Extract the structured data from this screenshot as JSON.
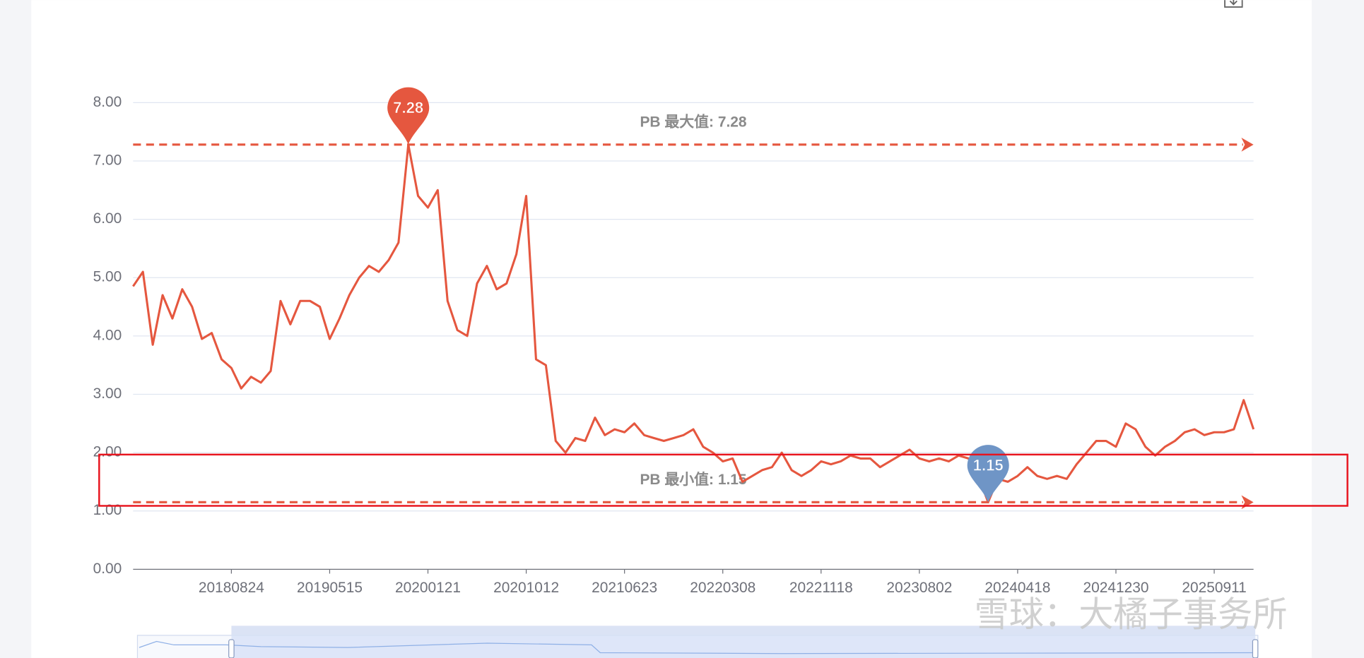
{
  "chart_data": {
    "type": "line",
    "color": "#e5573f",
    "categories": [
      null,
      null,
      null,
      null,
      null,
      null,
      null,
      null,
      null,
      null,
      "20180824",
      null,
      null,
      null,
      null,
      null,
      null,
      null,
      null,
      null,
      "20190515",
      null,
      null,
      null,
      null,
      null,
      null,
      null,
      null,
      null,
      "20200121",
      null,
      null,
      null,
      null,
      null,
      null,
      null,
      null,
      null,
      "20201012",
      null,
      null,
      null,
      null,
      null,
      null,
      null,
      null,
      null,
      "20210623",
      null,
      null,
      null,
      null,
      null,
      null,
      null,
      null,
      null,
      "20220308",
      null,
      null,
      null,
      null,
      null,
      null,
      null,
      null,
      null,
      "20221118",
      null,
      null,
      null,
      null,
      null,
      null,
      null,
      null,
      null,
      "20230802",
      null,
      null,
      null,
      null,
      null,
      null,
      null,
      null,
      null,
      "20240418",
      null,
      null,
      null,
      null,
      null,
      null,
      null,
      null,
      null,
      "20241230",
      null,
      null,
      null,
      null,
      null,
      null,
      null,
      null,
      null,
      "20250911",
      null,
      null,
      null,
      null
    ],
    "values": [
      4.85,
      5.1,
      3.85,
      4.7,
      4.3,
      4.8,
      4.5,
      3.95,
      4.05,
      3.6,
      3.45,
      3.1,
      3.3,
      3.2,
      3.4,
      4.6,
      4.2,
      4.6,
      4.6,
      4.5,
      3.95,
      4.3,
      4.7,
      5.0,
      5.2,
      5.1,
      5.3,
      5.6,
      7.28,
      6.4,
      6.2,
      6.5,
      4.6,
      4.1,
      4.0,
      4.9,
      5.2,
      4.8,
      4.9,
      5.4,
      6.4,
      3.6,
      3.5,
      2.2,
      2.0,
      2.25,
      2.2,
      2.6,
      2.3,
      2.4,
      2.35,
      2.5,
      2.3,
      2.25,
      2.2,
      2.25,
      2.3,
      2.4,
      2.1,
      2.0,
      1.85,
      1.9,
      1.5,
      1.6,
      1.7,
      1.75,
      2.0,
      1.7,
      1.6,
      1.7,
      1.85,
      1.8,
      1.85,
      1.95,
      1.9,
      1.9,
      1.75,
      1.85,
      1.95,
      2.05,
      1.9,
      1.85,
      1.9,
      1.85,
      1.95,
      1.9,
      1.6,
      1.15,
      1.55,
      1.5,
      1.6,
      1.75,
      1.6,
      1.55,
      1.6,
      1.55,
      1.8,
      2.0,
      2.2,
      2.2,
      2.1,
      2.5,
      2.4,
      2.1,
      1.95,
      2.1,
      2.2,
      2.35,
      2.4,
      2.3,
      2.35,
      2.35,
      2.4,
      2.9,
      2.4
    ],
    "ylim": [
      0,
      8
    ],
    "yticks": [
      {
        "value": 0,
        "label": "0.00"
      },
      {
        "value": 1,
        "label": "1.00"
      },
      {
        "value": 2,
        "label": "2.00"
      },
      {
        "value": 3,
        "label": "3.00"
      },
      {
        "value": 4,
        "label": "4.00"
      },
      {
        "value": 5,
        "label": "5.00"
      },
      {
        "value": 6,
        "label": "6.00"
      },
      {
        "value": 7,
        "label": "7.00"
      },
      {
        "value": 8,
        "label": "8.00"
      }
    ],
    "grid": true,
    "max_point": 7.28,
    "min_point": 1.15,
    "max_line": {
      "value": 7.28,
      "label": "PB 最大值: 7.28"
    },
    "min_line": {
      "value": 1.15,
      "label": "PB 最小值: 1.15"
    },
    "max_pin_color": "#e5573f",
    "min_pin_color": "#6f95c6"
  },
  "watermark": "雪球：大橘子事务所"
}
